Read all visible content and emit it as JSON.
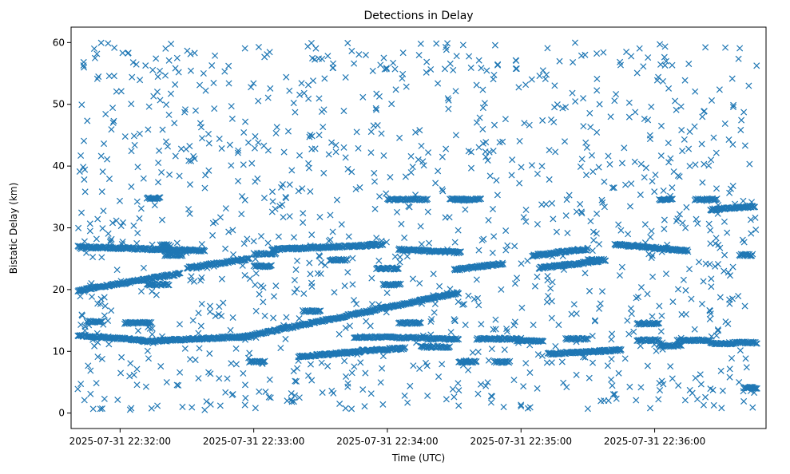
{
  "chart_data": {
    "type": "scatter",
    "title": "Detections in Delay",
    "xlabel": "Time (UTC)",
    "ylabel": "Bistatic Delay (km)",
    "x_axis": "time",
    "xlim": [
      "2025-07-31 22:31:38",
      "2025-07-31 22:36:50"
    ],
    "ylim": [
      -2.5,
      62.5
    ],
    "x_ticks": [
      "2025-07-31 22:32:00",
      "2025-07-31 22:33:00",
      "2025-07-31 22:34:00",
      "2025-07-31 22:35:00",
      "2025-07-31 22:36:00"
    ],
    "y_ticks": [
      0,
      10,
      20,
      30,
      40,
      50,
      60
    ],
    "marker": "x",
    "color": "#1f77b4",
    "grid": false,
    "legend": "none",
    "tracks": [
      {
        "t_start": "2025-07-31 22:31:41",
        "t_end": "2025-07-31 22:32:10",
        "y_start": 12.6,
        "y_end": 11.8
      },
      {
        "t_start": "2025-07-31 22:32:10",
        "t_end": "2025-07-31 22:32:58",
        "y_start": 11.6,
        "y_end": 12.4
      },
      {
        "t_start": "2025-07-31 22:32:55",
        "t_end": "2025-07-31 22:34:32",
        "y_start": 12.3,
        "y_end": 19.5
      },
      {
        "t_start": "2025-07-31 22:31:41",
        "t_end": "2025-07-31 22:32:27",
        "y_start": 19.8,
        "y_end": 22.6
      },
      {
        "t_start": "2025-07-31 22:31:41",
        "t_end": "2025-07-31 22:32:38",
        "y_start": 26.9,
        "y_end": 26.3
      },
      {
        "t_start": "2025-07-31 22:32:30",
        "t_end": "2025-07-31 22:32:58",
        "y_start": 23.5,
        "y_end": 25.0
      },
      {
        "t_start": "2025-07-31 22:33:08",
        "t_end": "2025-07-31 22:33:55",
        "y_start": 26.5,
        "y_end": 27.2
      },
      {
        "t_start": "2025-07-31 22:33:20",
        "t_end": "2025-07-31 22:33:48",
        "y_start": 9.1,
        "y_end": 10.0
      },
      {
        "t_start": "2025-07-31 22:33:48",
        "t_end": "2025-07-31 22:34:08",
        "y_start": 10.1,
        "y_end": 10.5
      },
      {
        "t_start": "2025-07-31 22:34:05",
        "t_end": "2025-07-31 22:34:33",
        "y_start": 26.5,
        "y_end": 26.0
      },
      {
        "t_start": "2025-07-31 22:34:30",
        "t_end": "2025-07-31 22:34:52",
        "y_start": 23.2,
        "y_end": 24.2
      },
      {
        "t_start": "2025-07-31 22:35:08",
        "t_end": "2025-07-31 22:35:35",
        "y_start": 23.5,
        "y_end": 24.6
      },
      {
        "t_start": "2025-07-31 22:35:05",
        "t_end": "2025-07-31 22:35:30",
        "y_start": 25.5,
        "y_end": 26.6
      },
      {
        "t_start": "2025-07-31 22:35:12",
        "t_end": "2025-07-31 22:35:45",
        "y_start": 9.6,
        "y_end": 10.2
      },
      {
        "t_start": "2025-07-31 22:35:42",
        "t_end": "2025-07-31 22:36:15",
        "y_start": 27.3,
        "y_end": 26.3
      },
      {
        "t_start": "2025-07-31 22:36:25",
        "t_end": "2025-07-31 22:36:45",
        "y_start": 32.9,
        "y_end": 33.5
      }
    ],
    "segments": [
      {
        "t_start": "2025-07-31 22:31:45",
        "t_end": "2025-07-31 22:31:52",
        "y": 14.8
      },
      {
        "t_start": "2025-07-31 22:32:02",
        "t_end": "2025-07-31 22:32:14",
        "y": 14.6
      },
      {
        "t_start": "2025-07-31 22:32:12",
        "t_end": "2025-07-31 22:32:18",
        "y": 34.8
      },
      {
        "t_start": "2025-07-31 22:32:12",
        "t_end": "2025-07-31 22:32:22",
        "y": 20.8
      },
      {
        "t_start": "2025-07-31 22:32:18",
        "t_end": "2025-07-31 22:32:22",
        "y": 27.2
      },
      {
        "t_start": "2025-07-31 22:32:20",
        "t_end": "2025-07-31 22:32:28",
        "y": 25.6
      },
      {
        "t_start": "2025-07-31 22:33:00",
        "t_end": "2025-07-31 22:33:10",
        "y": 25.8
      },
      {
        "t_start": "2025-07-31 22:33:00",
        "t_end": "2025-07-31 22:33:08",
        "y": 23.8
      },
      {
        "t_start": "2025-07-31 22:32:58",
        "t_end": "2025-07-31 22:33:05",
        "y": 8.3
      },
      {
        "t_start": "2025-07-31 22:33:22",
        "t_end": "2025-07-31 22:33:30",
        "y": 16.5
      },
      {
        "t_start": "2025-07-31 22:33:34",
        "t_end": "2025-07-31 22:33:42",
        "y": 24.8
      },
      {
        "t_start": "2025-07-31 22:33:45",
        "t_end": "2025-07-31 22:34:05",
        "y": 12.3
      },
      {
        "t_start": "2025-07-31 22:33:55",
        "t_end": "2025-07-31 22:34:05",
        "y": 23.4
      },
      {
        "t_start": "2025-07-31 22:33:52",
        "t_end": "2025-07-31 22:33:58",
        "y": 27.3
      },
      {
        "t_start": "2025-07-31 22:33:58",
        "t_end": "2025-07-31 22:34:06",
        "y": 20.8
      },
      {
        "t_start": "2025-07-31 22:34:00",
        "t_end": "2025-07-31 22:34:18",
        "y": 34.6
      },
      {
        "t_start": "2025-07-31 22:34:05",
        "t_end": "2025-07-31 22:34:15",
        "y": 14.6
      },
      {
        "t_start": "2025-07-31 22:34:05",
        "t_end": "2025-07-31 22:34:18",
        "y": 12.2
      },
      {
        "t_start": "2025-07-31 22:34:15",
        "t_end": "2025-07-31 22:34:28",
        "y": 10.7
      },
      {
        "t_start": "2025-07-31 22:34:18",
        "t_end": "2025-07-31 22:34:32",
        "y": 12.0
      },
      {
        "t_start": "2025-07-31 22:34:28",
        "t_end": "2025-07-31 22:34:32",
        "y": 34.6
      },
      {
        "t_start": "2025-07-31 22:34:32",
        "t_end": "2025-07-31 22:34:42",
        "y": 34.6
      },
      {
        "t_start": "2025-07-31 22:34:32",
        "t_end": "2025-07-31 22:34:40",
        "y": 8.3
      },
      {
        "t_start": "2025-07-31 22:34:48",
        "t_end": "2025-07-31 22:34:55",
        "y": 8.3
      },
      {
        "t_start": "2025-07-31 22:34:40",
        "t_end": "2025-07-31 22:35:00",
        "y": 12.0
      },
      {
        "t_start": "2025-07-31 22:34:58",
        "t_end": "2025-07-31 22:35:10",
        "y": 11.7
      },
      {
        "t_start": "2025-07-31 22:35:20",
        "t_end": "2025-07-31 22:35:30",
        "y": 12.0
      },
      {
        "t_start": "2025-07-31 22:35:30",
        "t_end": "2025-07-31 22:35:38",
        "y": 24.8
      },
      {
        "t_start": "2025-07-31 22:35:52",
        "t_end": "2025-07-31 22:36:02",
        "y": 14.5
      },
      {
        "t_start": "2025-07-31 22:35:52",
        "t_end": "2025-07-31 22:36:02",
        "y": 11.8
      },
      {
        "t_start": "2025-07-31 22:36:02",
        "t_end": "2025-07-31 22:36:08",
        "y": 34.6
      },
      {
        "t_start": "2025-07-31 22:36:02",
        "t_end": "2025-07-31 22:36:12",
        "y": 10.9
      },
      {
        "t_start": "2025-07-31 22:36:10",
        "t_end": "2025-07-31 22:36:25",
        "y": 11.8
      },
      {
        "t_start": "2025-07-31 22:36:18",
        "t_end": "2025-07-31 22:36:28",
        "y": 34.6
      },
      {
        "t_start": "2025-07-31 22:36:25",
        "t_end": "2025-07-31 22:36:35",
        "y": 11.3
      },
      {
        "t_start": "2025-07-31 22:36:35",
        "t_end": "2025-07-31 22:36:46",
        "y": 11.4
      },
      {
        "t_start": "2025-07-31 22:36:38",
        "t_end": "2025-07-31 22:36:44",
        "y": 25.6
      },
      {
        "t_start": "2025-07-31 22:36:40",
        "t_end": "2025-07-31 22:36:46",
        "y": 4.1
      }
    ],
    "scatter_points": [
      [
        "2025-07-31 22:31:41",
        3.9
      ],
      [
        "2025-07-31 22:31:44",
        2.1
      ],
      [
        "2025-07-31 22:31:53",
        2.3
      ],
      [
        "2025-07-31 22:32:05",
        0.8
      ],
      [
        "2025-07-31 22:32:28",
        1.0
      ],
      [
        "2025-07-31 22:32:38",
        0.5
      ],
      [
        "2025-07-31 22:32:45",
        1.2
      ],
      [
        "2025-07-31 22:33:15",
        2.0
      ],
      [
        "2025-07-31 22:33:35",
        3.6
      ],
      [
        "2025-07-31 22:33:58",
        1.4
      ],
      [
        "2025-07-31 22:34:18",
        2.8
      ],
      [
        "2025-07-31 22:34:32",
        1.2
      ],
      [
        "2025-07-31 22:35:00",
        1.1
      ],
      [
        "2025-07-31 22:35:30",
        0.7
      ],
      [
        "2025-07-31 22:35:58",
        0.8
      ],
      [
        "2025-07-31 22:36:22",
        1.3
      ],
      [
        "2025-07-31 22:36:40",
        1.9
      ],
      [
        "2025-07-31 22:36:44",
        0.9
      ]
    ]
  }
}
